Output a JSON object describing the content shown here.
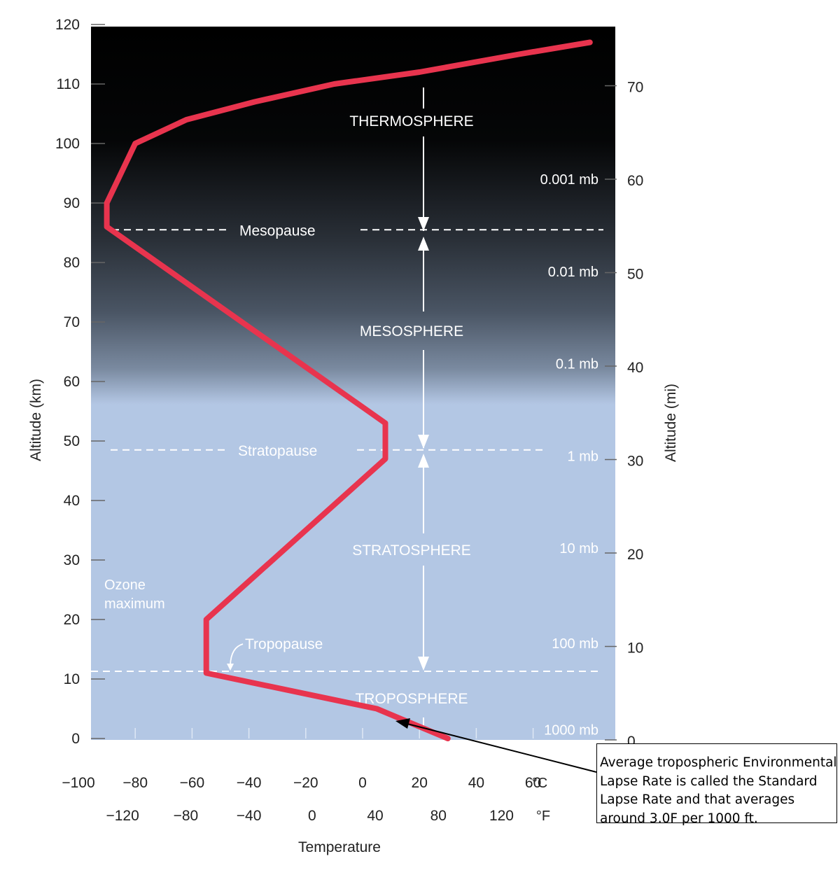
{
  "chart_data": {
    "type": "line",
    "xlabel": "Temperature",
    "ylabel": "Altitude (km)",
    "y2label": "Altitude (mi)",
    "ylim": [
      0,
      120
    ],
    "xlim_c": [
      -100,
      100
    ],
    "yticks_km": [
      0,
      10,
      20,
      30,
      40,
      50,
      60,
      70,
      80,
      90,
      100,
      110,
      120
    ],
    "yticks_mi": [
      0,
      10,
      20,
      30,
      40,
      50,
      60,
      70
    ],
    "xticks_c": [
      -100,
      -80,
      -60,
      -40,
      -20,
      0,
      20,
      40,
      60
    ],
    "xticks_f": [
      -120,
      -80,
      -40,
      0,
      40,
      80,
      120
    ],
    "unit_c": "°C",
    "unit_f": "°F",
    "series": [
      {
        "color": "#e8344e",
        "x": [
          30,
          5,
          -55,
          -55,
          8,
          8,
          -90,
          -90,
          -80,
          -62,
          -38,
          -10,
          20,
          55,
          80
        ],
        "y": [
          0,
          5,
          11,
          20,
          47,
          53,
          86,
          90,
          100,
          104,
          107,
          110,
          112,
          115,
          117
        ]
      }
    ],
    "pressure_labels": [
      {
        "text": "1000 mb",
        "alt_km": 1.5
      },
      {
        "text": "100 mb",
        "alt_km": 16
      },
      {
        "text": "10 mb",
        "alt_km": 32
      },
      {
        "text": "1 mb",
        "alt_km": 47.5
      },
      {
        "text": "0.1 mb",
        "alt_km": 63
      },
      {
        "text": "0.01 mb",
        "alt_km": 78.5
      },
      {
        "text": "0.001 mb",
        "alt_km": 94
      }
    ],
    "boundaries": [
      {
        "label": "Mesopause",
        "alt_km": 85.5
      },
      {
        "label": "Stratopause",
        "alt_km": 48.5
      },
      {
        "label": "Tropopause",
        "alt_km": 11.3
      }
    ],
    "layers": [
      {
        "label": "THERMOSPHERE",
        "alt_km": 104
      },
      {
        "label": "MESOSPHERE",
        "alt_km": 69
      },
      {
        "label": "STRATOSPHERE",
        "alt_km": 32.5
      },
      {
        "label": "TROPOSPHERE",
        "alt_km": 6.8
      }
    ],
    "annotations": {
      "ozone_line1": "Ozone",
      "ozone_line2": "maximum",
      "note_lines": [
        "Average tropospheric Environmental",
        "Lapse Rate is called the Standard",
        "Lapse Rate and that averages",
        "around 3.0F per 1000 ft."
      ]
    },
    "colors": {
      "sky_top": "#000000",
      "sky_mid": "#3a4452",
      "sky_bottom": "#b3c7e4",
      "curve": "#e8344e"
    }
  }
}
